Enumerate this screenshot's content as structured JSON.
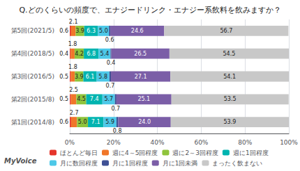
{
  "chart_data": {
    "type": "bar",
    "orientation": "horizontal",
    "stacked": true,
    "title": "Q.どのくらいの頻度で、エナジードリンク・エナジー系飲料を飲みますか？",
    "annotations": [
      "MyVoice"
    ],
    "categories": [
      "第5回(2021/5)",
      "第4回(2018/5)",
      "第3回(2016/5)",
      "第2回(2015/8)",
      "第1回(2014/8)"
    ],
    "series": [
      {
        "name": "ほとんど毎日",
        "color": "#e5352b",
        "values": [
          0.6,
          0.4,
          0.5,
          0.5,
          0.6
        ],
        "value_labels": [
          "0.6",
          "0.4",
          "0.5",
          "0.5",
          "0.6"
        ]
      },
      {
        "name": "週に4～5回程度",
        "color": "#f07629",
        "values": [
          2.1,
          1.8,
          1.8,
          2.5,
          2.7
        ],
        "value_labels": [
          "2.1",
          "1.8",
          "1.8",
          "2.5",
          "2.7"
        ]
      },
      {
        "name": "週に2～3回程度",
        "color": "#8fc43c",
        "values": [
          3.9,
          4.2,
          3.9,
          4.5,
          5.0
        ],
        "value_labels": [
          "3.9",
          "4.2",
          "3.9",
          "4.5",
          "5.0"
        ]
      },
      {
        "name": "週に1回程度",
        "color": "#00b4b0",
        "values": [
          6.3,
          6.8,
          6.1,
          7.4,
          7.1
        ],
        "value_labels": [
          "6.3",
          "6.8",
          "6.1",
          "7.4",
          "7.1"
        ]
      },
      {
        "name": "月に数回程度",
        "color": "#4dc8e8",
        "values": [
          5.0,
          5.4,
          5.8,
          5.7,
          5.9
        ],
        "value_labels": [
          "5.0",
          "5.4",
          "5.8",
          "5.7",
          "5.9"
        ]
      },
      {
        "name": "月に1回程度",
        "color": "#3f5195",
        "values": [
          0.6,
          0.4,
          0.7,
          0.7,
          0.8
        ],
        "value_labels": [
          "0.6",
          "0.4",
          "0.7",
          "0.7",
          "0.8"
        ]
      },
      {
        "name": "月に1回未満",
        "color": "#7b5ea7",
        "values": [
          24.6,
          26.5,
          27.1,
          25.1,
          24.0
        ],
        "value_labels": [
          "24.6",
          "26.5",
          "27.1",
          "25.1",
          "24.0"
        ]
      },
      {
        "name": "まったく飲まない",
        "color": "#c8c8c8",
        "values": [
          56.7,
          54.5,
          54.1,
          53.5,
          53.9
        ],
        "value_labels": [
          "56.7",
          "54.5",
          "54.1",
          "53.5",
          "53.9"
        ]
      }
    ],
    "xlim": [
      0,
      100
    ],
    "xticks": [
      {
        "value": 0,
        "label": "0%"
      },
      {
        "value": 20,
        "label": "20%"
      },
      {
        "value": 40,
        "label": "40%"
      },
      {
        "value": 60,
        "label": "60%"
      },
      {
        "value": 80,
        "label": "80%"
      },
      {
        "value": 100,
        "label": "100%"
      }
    ],
    "grid": true,
    "legend": "bottom",
    "data_labels": true
  }
}
